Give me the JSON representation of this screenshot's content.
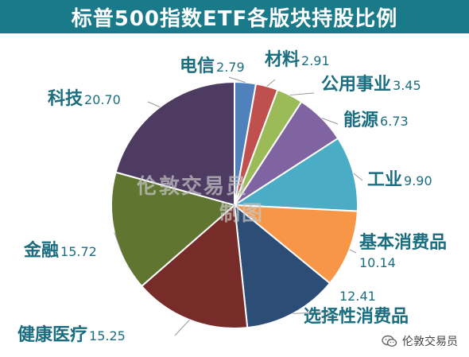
{
  "title": "标普500指数ETF各版块持股比例",
  "watermark": {
    "line1": "伦敦交易员",
    "line2": "制图"
  },
  "footer_label": "伦敦交易员",
  "footer_icon": "wechat-icon",
  "chart_data": {
    "type": "pie",
    "title": "标普500指数ETF各版块持股比例",
    "start": "12 o'clock",
    "direction": "clockwise",
    "slices": [
      {
        "name": "电信",
        "value": 2.79,
        "value_label": "2.79",
        "color": "#4f81bd"
      },
      {
        "name": "材料",
        "value": 2.91,
        "value_label": "2.91",
        "color": "#c0504d"
      },
      {
        "name": "公用事业",
        "value": 3.45,
        "value_label": "3.45",
        "color": "#9bbb59"
      },
      {
        "name": "能源",
        "value": 6.73,
        "value_label": "6.73",
        "color": "#8064a2"
      },
      {
        "name": "工业",
        "value": 9.9,
        "value_label": "9.90",
        "color": "#4bacc6"
      },
      {
        "name": "基本消费品",
        "value": 10.14,
        "value_label": "10.14",
        "color": "#f79646"
      },
      {
        "name": "选择性消费品",
        "value": 12.41,
        "value_label": "12.41",
        "color": "#2c4d75"
      },
      {
        "name": "健康医疗",
        "value": 15.25,
        "value_label": "15.25",
        "color": "#772c2a"
      },
      {
        "name": "金融",
        "value": 15.72,
        "value_label": "15.72",
        "color": "#5f7530"
      },
      {
        "name": "科技",
        "value": 20.7,
        "value_label": "20.70",
        "color": "#4d3b62"
      }
    ]
  }
}
